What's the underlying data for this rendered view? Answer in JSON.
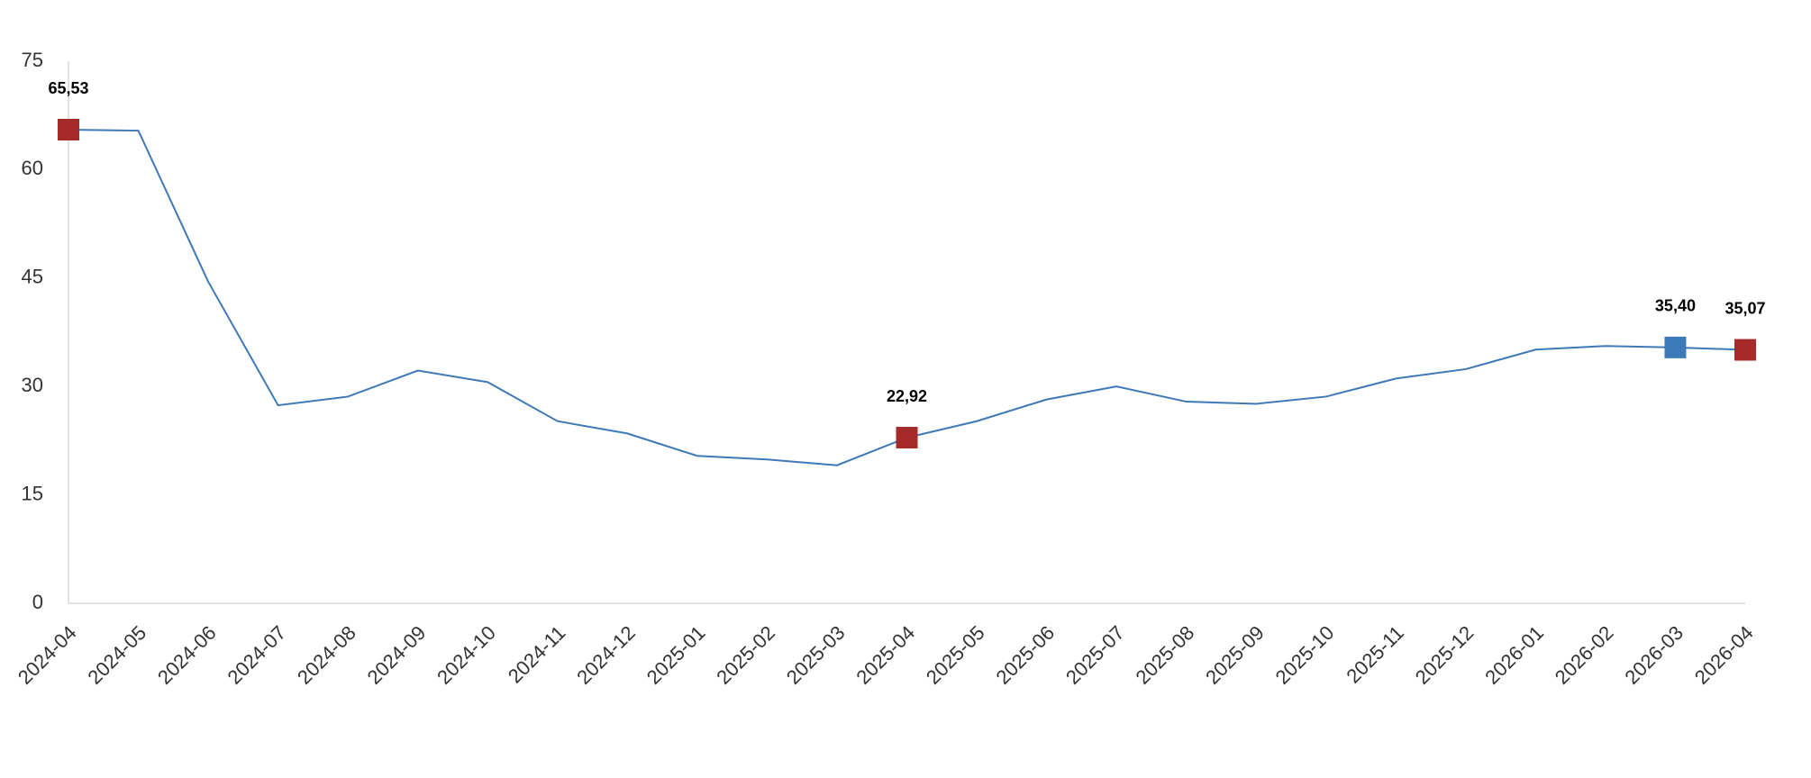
{
  "chart_data": {
    "type": "line",
    "categories": [
      "2024-04",
      "2024-05",
      "2024-06",
      "2024-07",
      "2024-08",
      "2024-09",
      "2024-10",
      "2024-11",
      "2024-12",
      "2025-01",
      "2025-02",
      "2025-03",
      "2025-04",
      "2025-05",
      "2025-06",
      "2025-07",
      "2025-08",
      "2025-09",
      "2025-10",
      "2025-11",
      "2025-12",
      "2026-01",
      "2026-02",
      "2026-03",
      "2026-04"
    ],
    "series": [
      {
        "color": "#3f78b6",
        "values": [
          65.53,
          65.4,
          44.5,
          27.4,
          28.6,
          32.2,
          30.6,
          25.2,
          23.5,
          20.4,
          19.9,
          19.1,
          22.92,
          25.2,
          28.2,
          30.0,
          27.9,
          27.6,
          28.6,
          31.1,
          32.4,
          35.1,
          35.6,
          35.4,
          35.07
        ],
        "value_labels": [
          "65,53",
          null,
          null,
          null,
          null,
          null,
          null,
          null,
          null,
          null,
          null,
          null,
          "22,92",
          null,
          null,
          null,
          null,
          null,
          null,
          null,
          null,
          null,
          null,
          "35,40",
          "35,07"
        ],
        "marker_colors": [
          "#a52a2a",
          null,
          null,
          null,
          null,
          null,
          null,
          null,
          null,
          null,
          null,
          null,
          "#a52a2a",
          null,
          null,
          null,
          null,
          null,
          null,
          null,
          null,
          null,
          null,
          "#3d7ab8",
          "#a52a2a"
        ]
      }
    ],
    "ylim": [
      0,
      75
    ],
    "yticks": [
      0,
      15,
      30,
      45,
      60,
      75
    ],
    "grid": false
  }
}
